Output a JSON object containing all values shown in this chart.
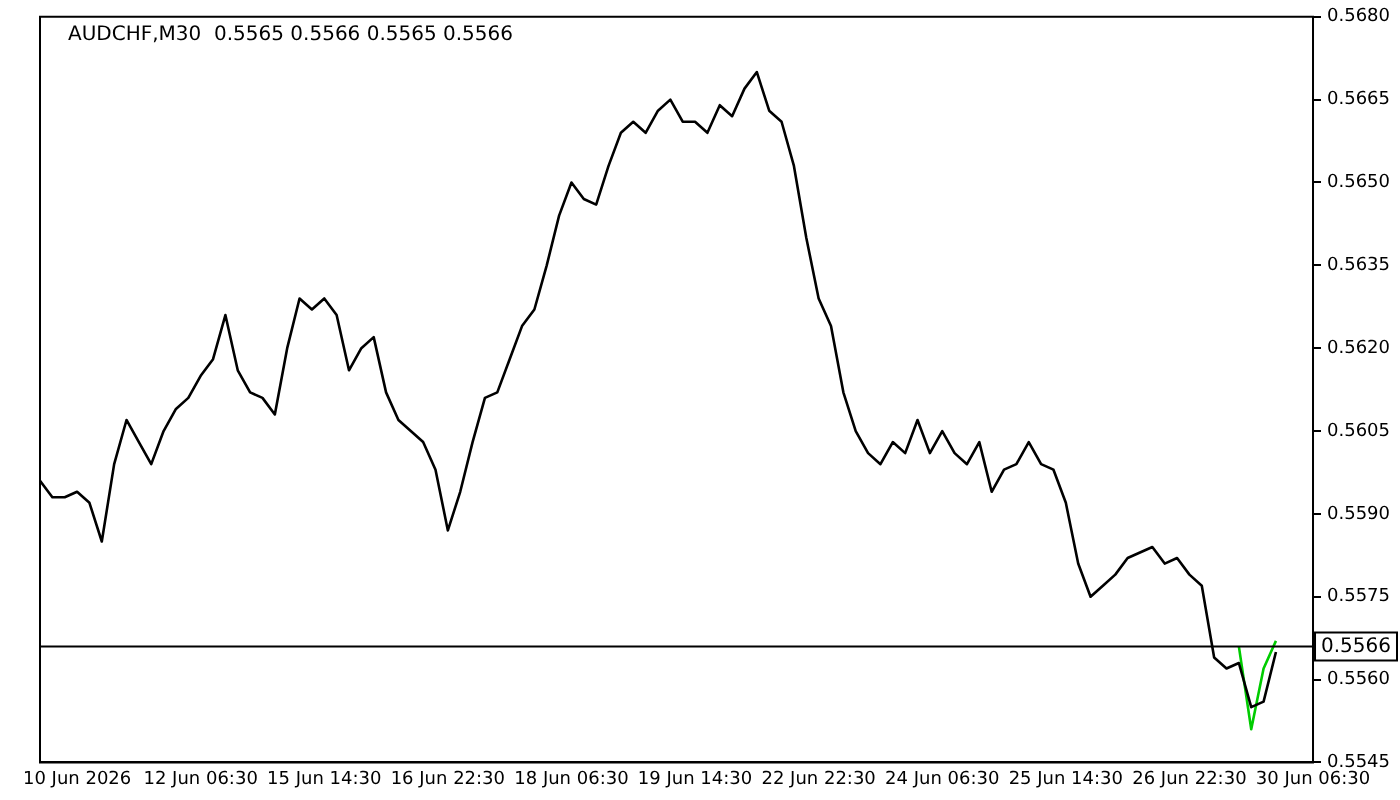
{
  "chart_data": {
    "type": "line",
    "title": "AUDCHF,M30  0.5565 0.5566 0.5565 0.5566",
    "categories": [
      null,
      null,
      null,
      "10 Jun 2026",
      null,
      null,
      null,
      null,
      null,
      null,
      null,
      null,
      null,
      "12 Jun 06:30",
      null,
      null,
      null,
      null,
      null,
      null,
      null,
      null,
      null,
      "15 Jun 14:30",
      null,
      null,
      null,
      null,
      null,
      null,
      null,
      null,
      null,
      "16 Jun 22:30",
      null,
      null,
      null,
      null,
      null,
      null,
      null,
      null,
      null,
      "18 Jun 06:30",
      null,
      null,
      null,
      null,
      null,
      null,
      null,
      null,
      null,
      "19 Jun 14:30",
      null,
      null,
      null,
      null,
      null,
      null,
      null,
      null,
      null,
      "22 Jun 22:30",
      null,
      null,
      null,
      null,
      null,
      null,
      null,
      null,
      null,
      "24 Jun 06:30",
      null,
      null,
      null,
      null,
      null,
      null,
      null,
      null,
      null,
      "25 Jun 14:30",
      null,
      null,
      null,
      null,
      null,
      null,
      null,
      null,
      null,
      "26 Jun 22:30",
      null,
      null,
      null,
      null,
      null,
      null,
      null,
      null,
      null,
      "30 Jun 06:30"
    ],
    "series": [
      {
        "color": "#000000",
        "values": [
          0.5596,
          0.5593,
          0.5593,
          0.5594,
          0.5592,
          0.5585,
          0.5599,
          0.5607,
          0.5603,
          0.5599,
          0.5605,
          0.5609,
          0.5611,
          0.5615,
          0.5618,
          0.5626,
          0.5616,
          0.5612,
          0.5611,
          0.5608,
          0.562,
          0.5629,
          0.5627,
          0.5629,
          0.5626,
          0.5616,
          0.562,
          0.5622,
          0.5612,
          0.5607,
          0.5605,
          0.5603,
          0.5598,
          0.5587,
          0.5594,
          0.5603,
          0.5611,
          0.5612,
          0.5618,
          0.5624,
          0.5627,
          0.5635,
          0.5644,
          0.565,
          0.5647,
          0.5646,
          0.5653,
          0.5659,
          0.5661,
          0.5659,
          0.5663,
          0.5665,
          0.5661,
          0.5661,
          0.5659,
          0.5664,
          0.5662,
          0.5667,
          0.567,
          0.5663,
          0.5661,
          0.5653,
          0.564,
          0.5629,
          0.5624,
          0.5612,
          0.5605,
          0.5601,
          0.5599,
          0.5603,
          0.5601,
          0.5607,
          0.5601,
          0.5605,
          0.5601,
          0.5599,
          0.5603,
          0.5594,
          0.5598,
          0.5599,
          0.5603,
          0.5599,
          0.5598,
          0.5592,
          0.5581,
          0.5575,
          0.5577,
          0.5579,
          0.5582,
          0.5583,
          0.5584,
          0.5581,
          0.5582,
          0.5579,
          0.5577,
          0.5564,
          0.5562,
          0.5563,
          0.5555,
          0.5556,
          0.5565,
          null,
          null,
          null
        ]
      },
      {
        "color": "#00cc00",
        "values": [
          null,
          null,
          null,
          null,
          null,
          null,
          null,
          null,
          null,
          null,
          null,
          null,
          null,
          null,
          null,
          null,
          null,
          null,
          null,
          null,
          null,
          null,
          null,
          null,
          null,
          null,
          null,
          null,
          null,
          null,
          null,
          null,
          null,
          null,
          null,
          null,
          null,
          null,
          null,
          null,
          null,
          null,
          null,
          null,
          null,
          null,
          null,
          null,
          null,
          null,
          null,
          null,
          null,
          null,
          null,
          null,
          null,
          null,
          null,
          null,
          null,
          null,
          null,
          null,
          null,
          null,
          null,
          null,
          null,
          null,
          null,
          null,
          null,
          null,
          null,
          null,
          null,
          null,
          null,
          null,
          null,
          null,
          null,
          null,
          null,
          null,
          null,
          null,
          null,
          null,
          null,
          null,
          null,
          null,
          null,
          null,
          null,
          0.5566,
          0.5551,
          0.5562,
          0.5567,
          null,
          null,
          null
        ]
      }
    ],
    "ylim": [
      0.5545,
      0.568
    ],
    "yticks": [
      0.5545,
      {
        "value": 0.556,
        "label": "0.5560"
      },
      0.5575,
      {
        "value": 0.559,
        "label": "0.5590"
      },
      0.5605,
      {
        "value": 0.562,
        "label": "0.5620"
      },
      0.5635,
      {
        "value": 0.565,
        "label": "0.5650"
      },
      0.5665,
      {
        "value": 0.568,
        "label": "0.5680"
      }
    ],
    "ref_lines": [
      {
        "axis": "y",
        "value": 0.5566,
        "label": "0.5566",
        "color": "#000000"
      }
    ],
    "grid": false,
    "legend": false,
    "marker": "none",
    "line_style": "solid"
  }
}
